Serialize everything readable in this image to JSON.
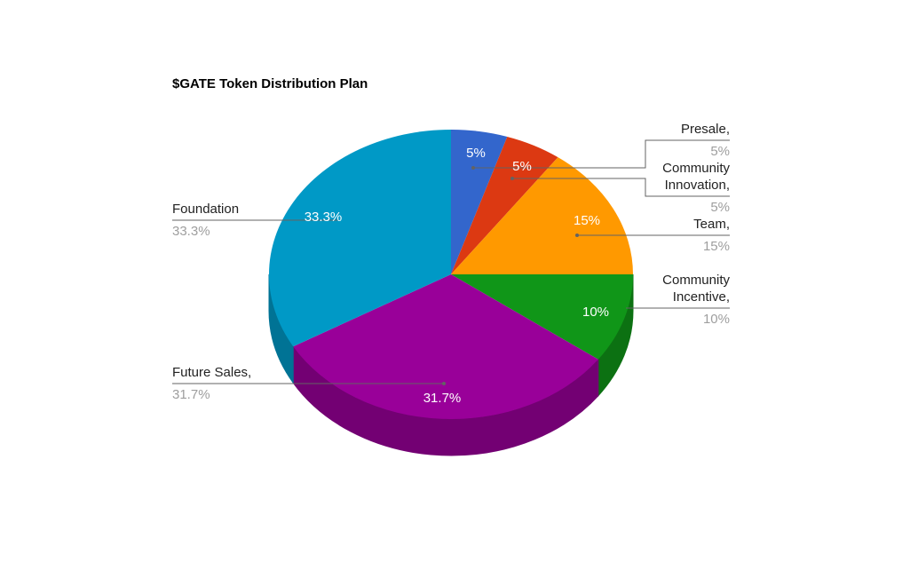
{
  "chart_data": {
    "type": "pie",
    "style": "3d",
    "title": "$GATE Token Distribution Plan",
    "slices": [
      {
        "name": "Presale",
        "label": "Presale,",
        "value": 5,
        "pct_label": "5%",
        "color": "#3366cc",
        "side": "#264d99"
      },
      {
        "name": "Community Innovation",
        "label1": "Community",
        "label2": "Innovation,",
        "value": 5,
        "pct_label": "5%",
        "color": "#dc3912",
        "side": "#a52b0e"
      },
      {
        "name": "Team",
        "label": "Team,",
        "value": 15,
        "pct_label": "15%",
        "color": "#ff9900",
        "side": "#bf7300"
      },
      {
        "name": "Community Incentive",
        "label1": "Community",
        "label2": "Incentive,",
        "value": 10,
        "pct_label": "10%",
        "color": "#109618",
        "side": "#0c7112"
      },
      {
        "name": "Future Sales",
        "label": "Future Sales,",
        "value": 31.7,
        "pct_label": "31.7%",
        "color": "#990099",
        "side": "#730073"
      },
      {
        "name": "Foundation",
        "label": "Foundation",
        "value": 33.3,
        "pct_label": "33.3%",
        "color": "#0099c6",
        "side": "#007395"
      }
    ],
    "legend": "labeled"
  }
}
